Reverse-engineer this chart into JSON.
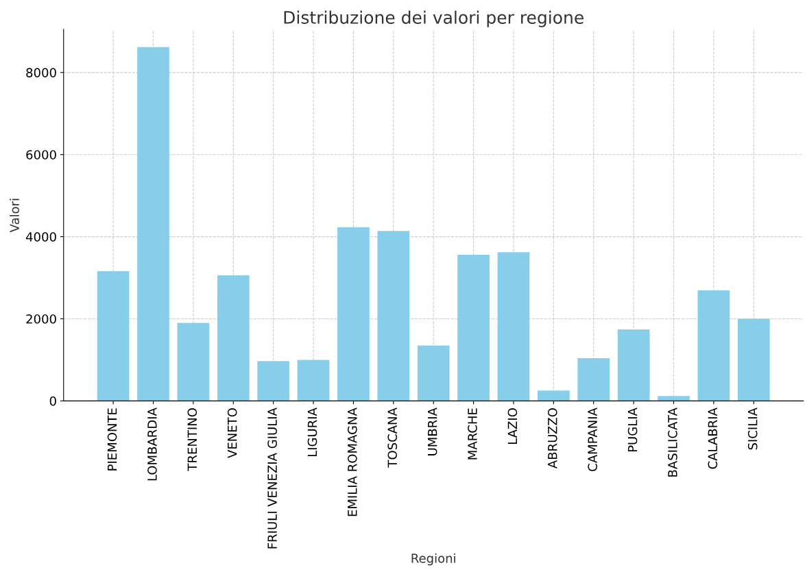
{
  "chart_data": {
    "type": "bar",
    "title": "Distribuzione dei valori per regione",
    "xlabel": "Regioni",
    "ylabel": "Valori",
    "categories": [
      "PIEMONTE",
      "LOMBARDIA",
      "TRENTINO",
      "VENETO",
      "FRIULI VENEZIA GIULIA",
      "LIGURIA",
      "EMILIA ROMAGNA",
      "TOSCANA",
      "UMBRIA",
      "MARCHE",
      "LAZIO",
      "ABRUZZO",
      "CAMPANIA",
      "PUGLIA",
      "BASILICATA",
      "CALABRIA",
      "SICILIA"
    ],
    "values": [
      3160,
      8620,
      1900,
      3060,
      970,
      1000,
      4230,
      4140,
      1350,
      3560,
      3620,
      250,
      1040,
      1740,
      120,
      2690,
      2000
    ],
    "color": "#87ceeb",
    "ylim": [
      0,
      9050
    ],
    "yticks": [
      0,
      2000,
      4000,
      6000,
      8000
    ],
    "grid": true
  }
}
